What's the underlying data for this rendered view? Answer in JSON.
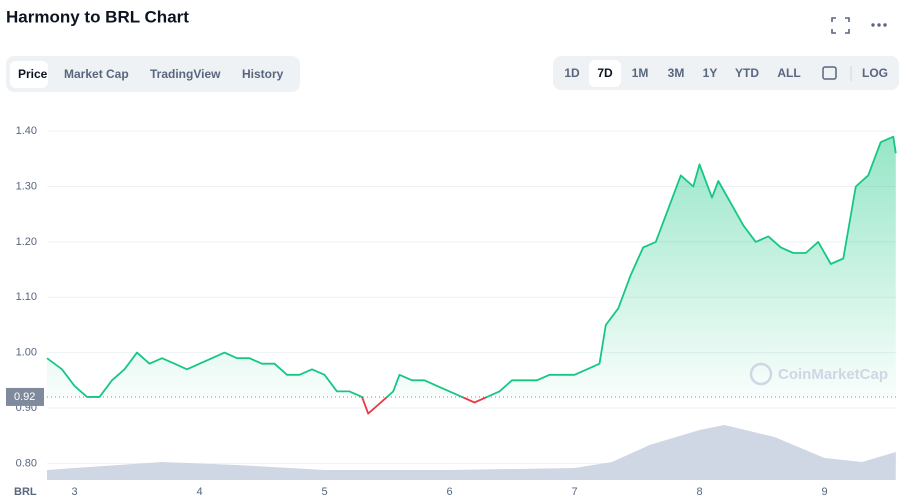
{
  "toolbar": {
    "tabs": [
      "Price",
      "Market Cap",
      "TradingView",
      "History"
    ],
    "active_tab": 0,
    "ranges": [
      "1D",
      "7D",
      "1M",
      "3M",
      "1Y",
      "YTD",
      "ALL"
    ],
    "active_range": 1,
    "log_button": "LOG"
  },
  "chart_data": {
    "type": "line",
    "title": "Harmony to BRL Chart",
    "currency_label": "BRL",
    "watermark": "CoinMarketCap",
    "x": [
      2.78,
      2.9,
      3.0,
      3.1,
      3.2,
      3.3,
      3.4,
      3.5,
      3.6,
      3.7,
      3.8,
      3.9,
      4.0,
      4.1,
      4.2,
      4.3,
      4.4,
      4.5,
      4.6,
      4.7,
      4.8,
      4.9,
      5.0,
      5.1,
      5.2,
      5.3,
      5.35,
      5.45,
      5.55,
      5.6,
      5.7,
      5.8,
      5.9,
      6.0,
      6.1,
      6.2,
      6.3,
      6.4,
      6.5,
      6.6,
      6.7,
      6.8,
      6.9,
      7.0,
      7.1,
      7.2,
      7.25,
      7.35,
      7.45,
      7.55,
      7.65,
      7.75,
      7.85,
      7.95,
      8.0,
      8.1,
      8.15,
      8.25,
      8.35,
      8.45,
      8.55,
      8.65,
      8.75,
      8.85,
      8.95,
      9.05,
      9.15,
      9.25,
      9.35,
      9.45,
      9.55,
      9.57
    ],
    "series": [
      {
        "name": "Price",
        "color": "#16c784",
        "values": [
          0.99,
          0.97,
          0.94,
          0.92,
          0.92,
          0.95,
          0.97,
          1.0,
          0.98,
          0.99,
          0.98,
          0.97,
          0.98,
          0.99,
          1.0,
          0.99,
          0.99,
          0.98,
          0.98,
          0.96,
          0.96,
          0.97,
          0.96,
          0.93,
          0.93,
          0.92,
          0.89,
          0.91,
          0.93,
          0.96,
          0.95,
          0.95,
          0.94,
          0.93,
          0.92,
          0.91,
          0.92,
          0.93,
          0.95,
          0.95,
          0.95,
          0.96,
          0.96,
          0.96,
          0.97,
          0.98,
          1.05,
          1.08,
          1.14,
          1.19,
          1.2,
          1.26,
          1.32,
          1.3,
          1.34,
          1.28,
          1.31,
          1.27,
          1.23,
          1.2,
          1.21,
          1.19,
          1.18,
          1.18,
          1.2,
          1.16,
          1.17,
          1.3,
          1.32,
          1.38,
          1.39,
          1.36
        ]
      },
      {
        "name": "Volume",
        "color": "#cfd6e4",
        "axis": "y2",
        "x": [
          2.78,
          3.0,
          3.7,
          4.3,
          5.0,
          6.0,
          7.0,
          7.3,
          7.6,
          8.0,
          8.2,
          8.6,
          9.0,
          9.3,
          9.57
        ],
        "values": [
          10,
          12,
          18,
          15,
          10,
          10,
          12,
          18,
          35,
          50,
          55,
          43,
          22,
          18,
          28
        ]
      }
    ],
    "below_color": "#ea3943",
    "reference": {
      "value": 0.92,
      "label": "0.92"
    },
    "xlim": [
      2.78,
      9.58
    ],
    "xticks": [
      3,
      4,
      5,
      6,
      7,
      8,
      9
    ],
    "ylim": [
      0.77,
      1.44
    ],
    "yticks": [
      {
        "value": 0.8,
        "label": "0.80"
      },
      {
        "value": 0.9,
        "label": "0.90"
      },
      {
        "value": 1.0,
        "label": "1.00"
      },
      {
        "value": 1.1,
        "label": "1.10"
      },
      {
        "value": 1.2,
        "label": "1.20"
      },
      {
        "value": 1.3,
        "label": "1.30"
      },
      {
        "value": 1.4,
        "label": "1.40"
      }
    ],
    "y2lim": [
      0,
      100
    ],
    "grid": true
  }
}
